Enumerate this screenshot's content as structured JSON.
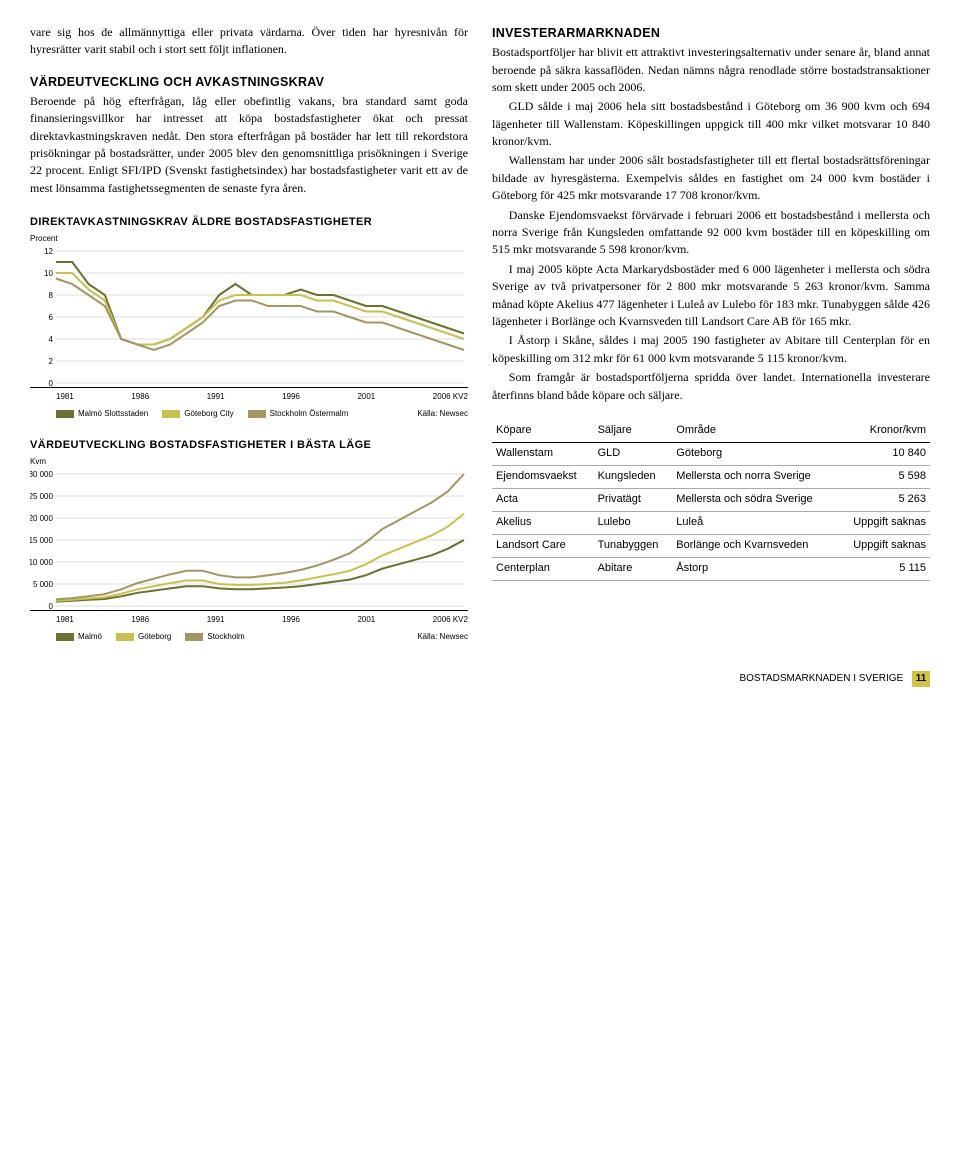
{
  "left": {
    "intro_para": "vare sig hos de allmännyttiga eller privata värdarna. Över tiden har hyresnivån för hyresrätter varit stabil och i stort sett följt inflationen.",
    "sec1_title": "VÄRDEUTVECKLING OCH AVKASTNINGSKRAV",
    "sec1_p1": "Beroende på hög efterfrågan, låg eller obefintlig vakans, bra standard samt goda finansieringsvillkor har intresset att köpa bostadsfastigheter ökat och pressat direktavkastnings­kraven nedåt. Den stora efterfrågan på bostäder har lett till rekordstora prisökningar på bostadsrätter, under 2005 blev den genomsnittliga prisökningen i Sverige 22 procent. Enligt SFI/IPD (Svenskt fastighetsindex) har bostadsfastig­heter varit ett av de mest lönsamma fastighetssegmenten de senaste fyra åren.",
    "chart1": {
      "title": "DIREKTAVKASTNINGSKRAV ÄLDRE BOSTADSFASTIGHETER",
      "unit": "Procent",
      "ymax": 12,
      "ystep": 2,
      "x_labels": [
        "1981",
        "1986",
        "1991",
        "1996",
        "2001",
        "2006 KV2"
      ],
      "series": [
        {
          "name": "Malmö Slottsstaden",
          "color": "#6c7030",
          "values": [
            11,
            11,
            9,
            8,
            4,
            3.5,
            3.5,
            4,
            5,
            6,
            8,
            9,
            8,
            8,
            8,
            8.5,
            8,
            8,
            7.5,
            7,
            7,
            6.5,
            6,
            5.5,
            5,
            4.5
          ]
        },
        {
          "name": "Göteborg City",
          "color": "#cabf4f",
          "values": [
            10,
            10,
            8.5,
            7.5,
            4,
            3.5,
            3.5,
            4,
            5,
            6,
            7.5,
            8,
            8,
            8,
            8,
            8,
            7.5,
            7.5,
            7,
            6.5,
            6.5,
            6,
            5.5,
            5,
            4.5,
            4
          ]
        },
        {
          "name": "Stockholm Östermalm",
          "color": "#a39663",
          "values": [
            9.5,
            9,
            8,
            7,
            4,
            3.5,
            3,
            3.5,
            4.5,
            5.5,
            7,
            7.5,
            7.5,
            7,
            7,
            7,
            6.5,
            6.5,
            6,
            5.5,
            5.5,
            5,
            4.5,
            4,
            3.5,
            3
          ]
        }
      ],
      "source": "Källa: Newsec"
    },
    "chart2": {
      "title": "VÄRDEUTVECKLING BOSTADSFASTIGHETER I BÄSTA LÄGE",
      "unit": "Kvm",
      "ymax": 30000,
      "ystep": 5000,
      "x_labels": [
        "1981",
        "1986",
        "1991",
        "1996",
        "2001",
        "2006 KV2"
      ],
      "series": [
        {
          "name": "Malmö",
          "color": "#6c7030",
          "values": [
            1000,
            1200,
            1400,
            1600,
            2200,
            3000,
            3500,
            4000,
            4500,
            4500,
            4000,
            3800,
            3800,
            4000,
            4200,
            4500,
            5000,
            5500,
            6000,
            7000,
            8500,
            9500,
            10500,
            11500,
            13000,
            15000
          ]
        },
        {
          "name": "Göteborg",
          "color": "#cabf4f",
          "values": [
            1200,
            1400,
            1700,
            2000,
            2800,
            3800,
            4500,
            5200,
            5800,
            5800,
            5000,
            4800,
            4800,
            5000,
            5300,
            5800,
            6500,
            7200,
            8000,
            9500,
            11500,
            13000,
            14500,
            16000,
            18000,
            21000
          ]
        },
        {
          "name": "Stockholm",
          "color": "#a39663",
          "values": [
            1500,
            1800,
            2200,
            2700,
            3800,
            5200,
            6200,
            7200,
            8000,
            8000,
            7000,
            6500,
            6500,
            7000,
            7500,
            8200,
            9200,
            10500,
            12000,
            14500,
            17500,
            19500,
            21500,
            23500,
            26000,
            30000
          ]
        }
      ],
      "source": "Källa: Newsec"
    }
  },
  "right": {
    "sec_title": "INVESTERARMARKNADEN",
    "p1": "Bostadsportföljer har blivit ett attraktivt investeringsalterna­tiv under senare år, bland annat beroende på säkra kassa­flöden. Nedan nämns några renodlade större bostadstrans­aktioner som skett under 2005 och 2006.",
    "p2": "GLD sålde i maj 2006 hela sitt bostadsbestånd i Göte­borg om 36 900 kvm och 694 lägenheter till Wallenstam. Köpeskillingen uppgick till 400 mkr vilket motsvarar 10 840 kronor/kvm.",
    "p3": "Wallenstam har under 2006 sålt bostadsfastigheter till ett flertal bostadsrättsföreningar bildade av hyresgästerna. Exempelvis såldes en fastighet om 24 000 kvm bostäder i Göteborg för 425 mkr motsvarande 17 708 kronor/kvm.",
    "p4": "Danske Ejendomsvaekst förvärvade i februari 2006 ett bostadsbestånd i mellersta och norra Sverige från Kungs­leden omfattande 92 000 kvm bostäder till en köpeskilling om 515 mkr motsvarande 5 598 kronor/kvm.",
    "p5": "I maj 2005 köpte Acta Markarydsbostäder med 6 000 lägenheter i mellersta och södra Sverige av två privatperso­ner för 2 800 mkr motsvarande 5 263 kronor/kvm. Samma månad köpte Akelius 477 lägenheter i Luleå av Lulebo för 183 mkr. Tunabyggen sålde 426 lägenheter i Borlänge och Kvarnsveden till Landsort Care AB för 165 mkr.",
    "p6": "I Åstorp i Skåne, såldes i maj 2005 190 fastigheter av Abitare till Centerplan för en köpeskilling om 312 mkr för 61 000 kvm motsvarande 5 115 kronor/kvm.",
    "p7": "Som framgår är bostadsportföljerna spridda över landet. Internationella investerare återfinns bland både köpare och säljare.",
    "table": {
      "headers": [
        "Köpare",
        "Säljare",
        "Område",
        "Kronor/kvm"
      ],
      "rows": [
        [
          "Wallenstam",
          "GLD",
          "Göteborg",
          "10 840"
        ],
        [
          "Ejendomsvaekst",
          "Kungsleden",
          "Mellersta och norra Sverige",
          "5 598"
        ],
        [
          "Acta",
          "Privatägt",
          "Mellersta och södra Sverige",
          "5 263"
        ],
        [
          "Akelius",
          "Lulebo",
          "Luleå",
          "Uppgift saknas"
        ],
        [
          "Landsort Care",
          "Tunabyggen",
          "Borlänge och Kvarnsveden",
          "Uppgift saknas"
        ],
        [
          "Centerplan",
          "Abitare",
          "Åstorp",
          "5 115"
        ]
      ]
    }
  },
  "footer": {
    "label": "BOSTADSMARKNADEN I SVERIGE",
    "page": "11"
  }
}
